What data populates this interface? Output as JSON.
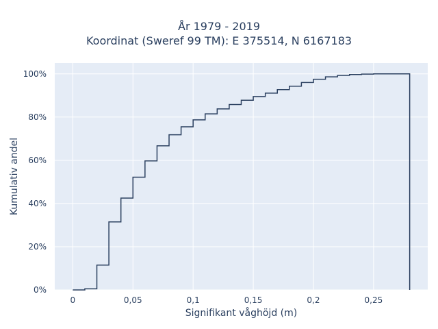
{
  "chart_data": {
    "type": "line",
    "line_shape": "step",
    "title_lines": [
      "År 1979 - 2019",
      "Koordinat (Sweref 99 TM): E 375514, N 6167183"
    ],
    "xlabel": "Signifikant våghöjd (m)",
    "ylabel": "Kumulativ andel",
    "xlim": [
      -0.015,
      0.295
    ],
    "ylim": [
      0,
      1.05
    ],
    "x_ticks": [
      0,
      0.05,
      0.1,
      0.15,
      0.2,
      0.25
    ],
    "x_tick_labels": [
      "0",
      "0,05",
      "0,1",
      "0,15",
      "0,2",
      "0,25"
    ],
    "y_ticks": [
      0,
      0.2,
      0.4,
      0.6,
      0.8,
      1.0
    ],
    "y_tick_labels": [
      "0%",
      "20%",
      "40%",
      "60%",
      "80%",
      "100%"
    ],
    "grid": true,
    "line_color": "#2a3f5f",
    "plot_bgcolor": "#e5ecf6",
    "x": [
      0,
      0.01,
      0.02,
      0.03,
      0.04,
      0.05,
      0.06,
      0.07,
      0.08,
      0.09,
      0.1,
      0.11,
      0.12,
      0.13,
      0.14,
      0.15,
      0.16,
      0.17,
      0.18,
      0.19,
      0.2,
      0.21,
      0.22,
      0.23,
      0.24,
      0.25,
      0.26,
      0.27,
      0.28
    ],
    "y": [
      0,
      0.005,
      0.115,
      0.315,
      0.425,
      0.522,
      0.597,
      0.667,
      0.718,
      0.755,
      0.787,
      0.815,
      0.838,
      0.858,
      0.878,
      0.895,
      0.911,
      0.927,
      0.943,
      0.96,
      0.975,
      0.986,
      0.993,
      0.997,
      0.999,
      1.0,
      1.0,
      1.0,
      0
    ]
  }
}
